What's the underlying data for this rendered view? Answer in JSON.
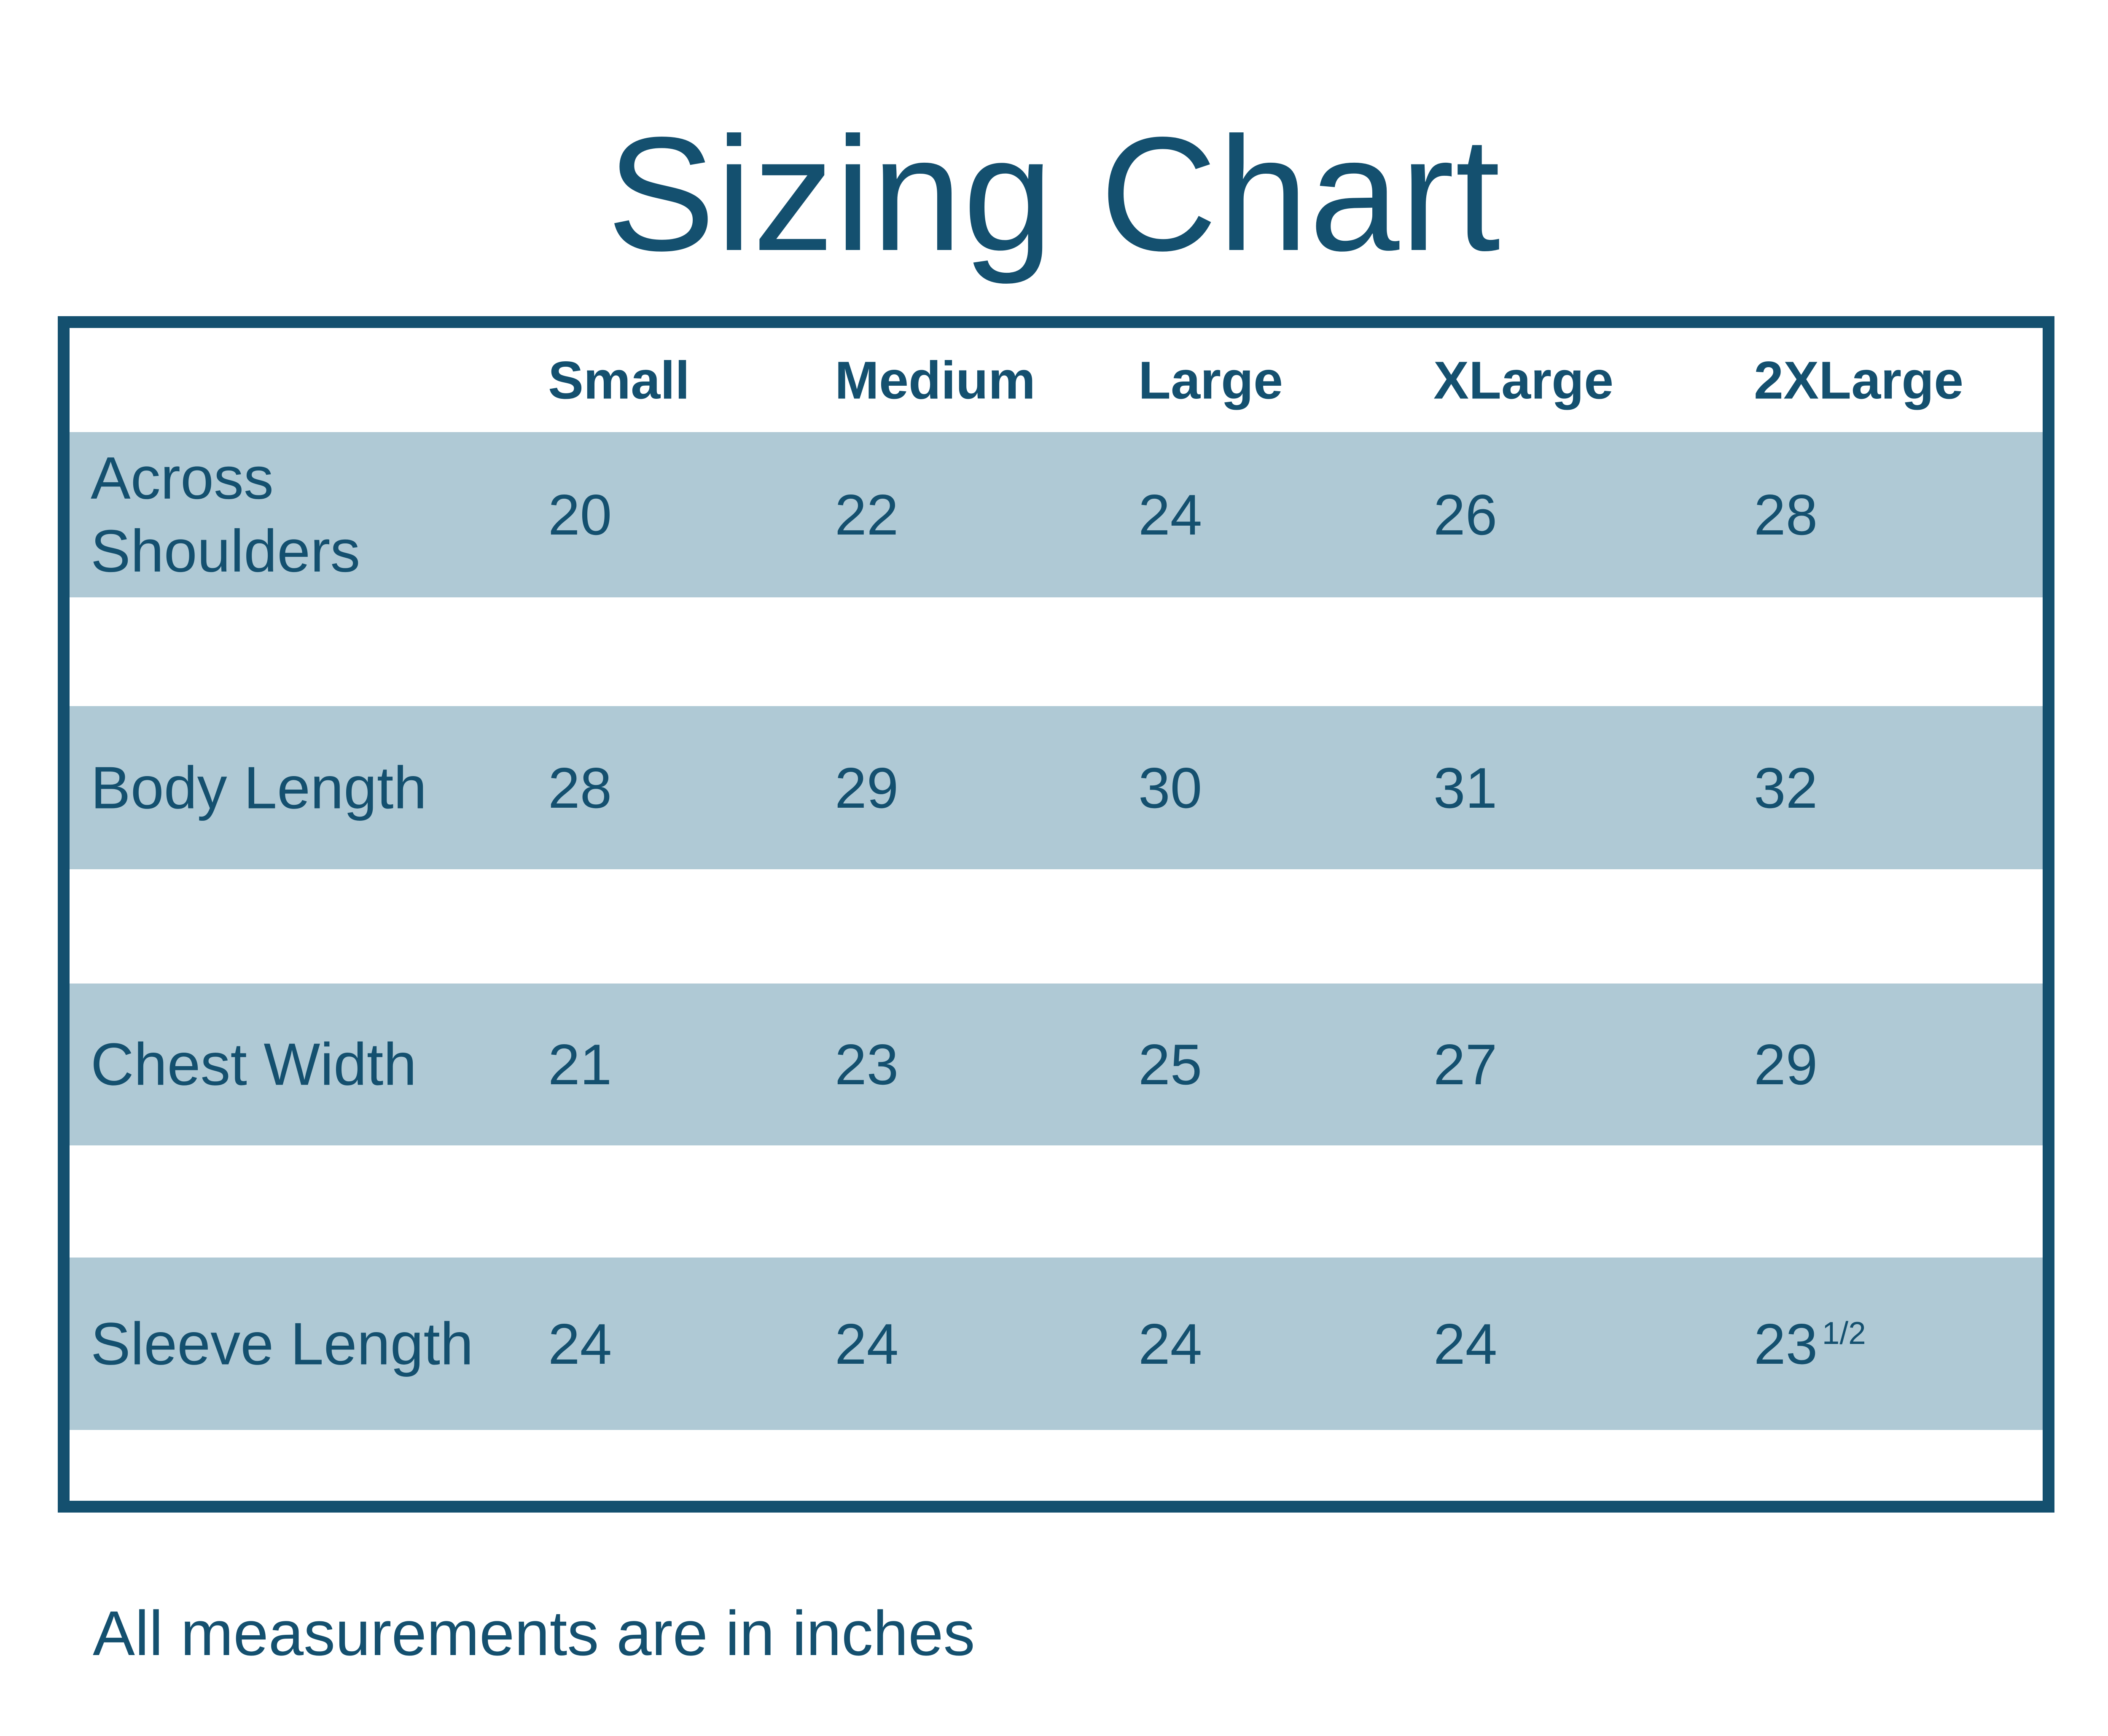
{
  "chart_data": {
    "type": "table",
    "title": "Sizing Chart",
    "columns": [
      "Small",
      "Medium",
      "Large",
      "XLarge",
      "2XLarge"
    ],
    "rows": [
      {
        "label": "Across Shoulders",
        "values": [
          "20",
          "22",
          "24",
          "26",
          "28"
        ]
      },
      {
        "label": "Body Length",
        "values": [
          "28",
          "29",
          "30",
          "31",
          "32"
        ]
      },
      {
        "label": "Chest Width",
        "values": [
          "21",
          "23",
          "25",
          "27",
          "29"
        ]
      },
      {
        "label": "Sleeve Length",
        "values": [
          "24",
          "24",
          "24",
          "24",
          "23 1/2"
        ]
      }
    ],
    "footnote": "All measurements are in inches"
  },
  "display": {
    "sleeve_2xlarge": {
      "main": "23",
      "sup": "1/2"
    }
  },
  "colors": {
    "navy": "#14506F",
    "row_band": "#AFC9D5",
    "background": "#FFFFFF"
  }
}
